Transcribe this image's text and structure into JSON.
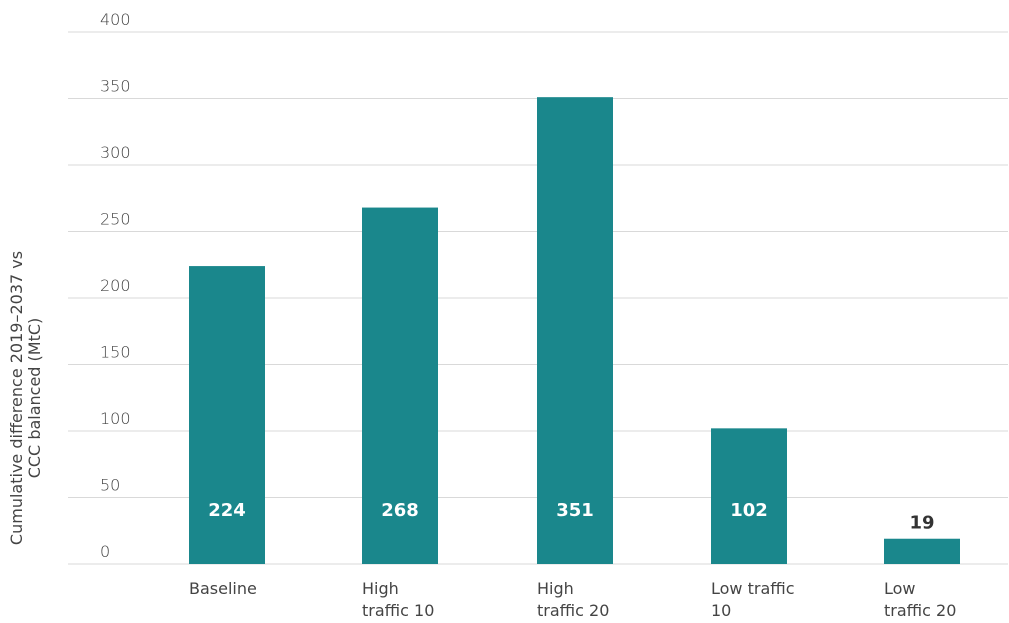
{
  "chart_data": {
    "type": "bar",
    "categories": [
      [
        "Baseline"
      ],
      [
        "High",
        "traffic 10"
      ],
      [
        "High",
        "traffic 20"
      ],
      [
        "Low traffic",
        "10"
      ],
      [
        "Low",
        "traffic 20"
      ]
    ],
    "values": [
      224,
      268,
      351,
      102,
      19
    ],
    "data_labels": [
      "224",
      "268",
      "351",
      "102",
      "19"
    ],
    "ylabel": [
      "Cumulative difference 2019–2037 vs",
      "CCC balanced (MtC)"
    ],
    "ylim": [
      0,
      400
    ],
    "yticks": [
      0,
      50,
      100,
      150,
      200,
      250,
      300,
      350,
      400
    ],
    "grid": true,
    "legend": "none",
    "colors": {
      "bar": "#1a878c",
      "label_inside": "#ffffff",
      "label_outside": "#333333"
    }
  }
}
